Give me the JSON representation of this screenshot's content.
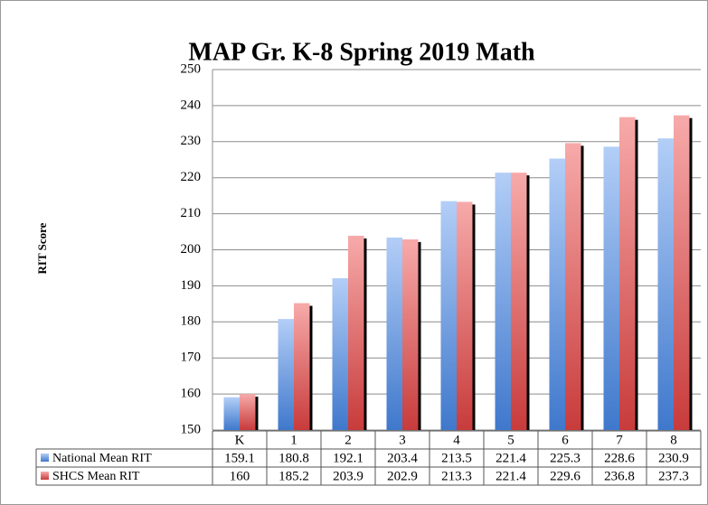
{
  "chart_data": {
    "type": "bar",
    "title": "MAP Gr. K-8 Spring 2019 Math",
    "y_label": "RIT Score",
    "categories": [
      "K",
      "1",
      "2",
      "3",
      "4",
      "5",
      "6",
      "7",
      "8"
    ],
    "series": [
      {
        "name": "National Mean RIT",
        "color": "#6f9ee6",
        "values": [
          159.1,
          180.8,
          192.1,
          203.4,
          213.5,
          221.4,
          225.3,
          228.6,
          230.9
        ]
      },
      {
        "name": "SHCS Mean RIT",
        "color": "#e06666",
        "values": [
          160,
          185.2,
          203.9,
          202.9,
          213.3,
          221.4,
          229.6,
          236.8,
          237.3
        ]
      }
    ],
    "ylim": [
      150,
      250
    ],
    "yticks": [
      150,
      160,
      170,
      180,
      190,
      200,
      210,
      220,
      230,
      240,
      250
    ],
    "grid": true
  }
}
